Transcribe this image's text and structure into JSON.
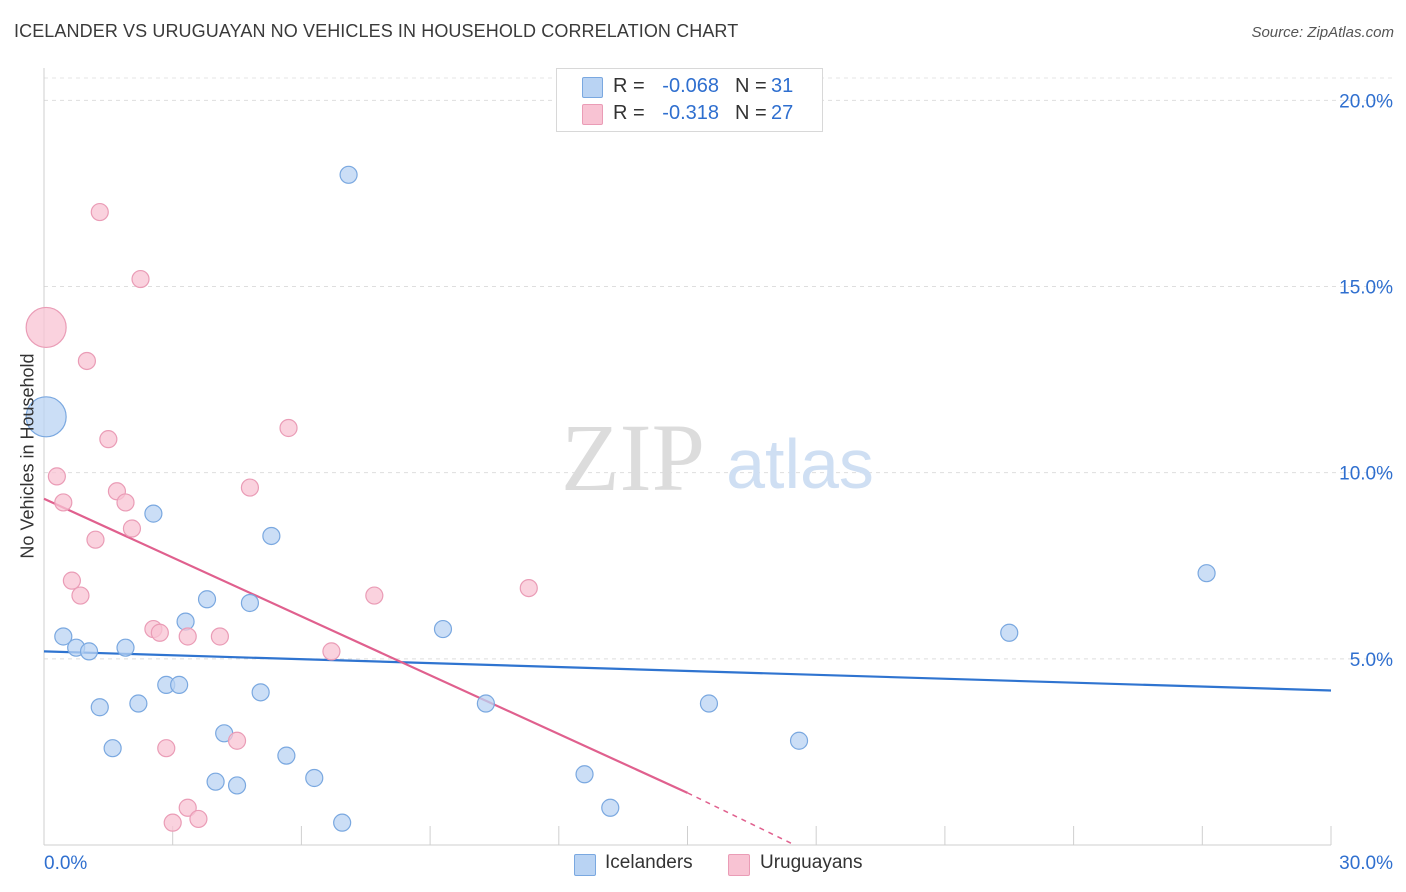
{
  "title": "ICELANDER VS URUGUAYAN NO VEHICLES IN HOUSEHOLD CORRELATION CHART",
  "source": "Source: ZipAtlas.com",
  "watermark": {
    "zip": "ZIP",
    "atlas": "atlas"
  },
  "colors": {
    "blue_fill": "#b9d3f3",
    "blue_stroke": "#7aa8e0",
    "blue_line": "#2f74d0",
    "pink_fill": "#f8c3d3",
    "pink_stroke": "#ea9cb6",
    "pink_line": "#e0608e",
    "accent_text": "#2f6fcf"
  },
  "legend": {
    "rows": [
      {
        "r_label": "R =",
        "r_value": "-0.068",
        "n_label": "N =",
        "n_value": "31"
      },
      {
        "r_label": "R =",
        "r_value": "-0.318",
        "n_label": "N =",
        "n_value": "27"
      }
    ]
  },
  "chart_data": {
    "type": "scatter",
    "xlabel": "",
    "ylabel": "No Vehicles in Household",
    "xlim": [
      0,
      30
    ],
    "ylim": [
      0,
      20.6
    ],
    "x_tick_labels": [
      "0.0%",
      "30.0%"
    ],
    "y_tick_labels": [
      "5.0%",
      "10.0%",
      "15.0%",
      "20.0%"
    ],
    "y_ticks": [
      5,
      10,
      15,
      20
    ],
    "legend_position": "bottom-center",
    "series": [
      {
        "name": "Icelanders",
        "color": "#7aa8e0",
        "points": [
          {
            "x": 0.05,
            "y": 11.5,
            "big": true
          },
          {
            "x": 0.45,
            "y": 5.6
          },
          {
            "x": 0.75,
            "y": 5.3
          },
          {
            "x": 1.05,
            "y": 5.2
          },
          {
            "x": 1.3,
            "y": 3.7
          },
          {
            "x": 1.6,
            "y": 2.6
          },
          {
            "x": 1.9,
            "y": 5.3
          },
          {
            "x": 2.2,
            "y": 3.8
          },
          {
            "x": 2.55,
            "y": 8.9
          },
          {
            "x": 2.85,
            "y": 4.3
          },
          {
            "x": 3.15,
            "y": 4.3
          },
          {
            "x": 3.3,
            "y": 6.0
          },
          {
            "x": 3.8,
            "y": 6.6
          },
          {
            "x": 4.0,
            "y": 1.7
          },
          {
            "x": 4.2,
            "y": 3.0
          },
          {
            "x": 4.5,
            "y": 1.6
          },
          {
            "x": 4.8,
            "y": 6.5
          },
          {
            "x": 5.05,
            "y": 4.1
          },
          {
            "x": 5.3,
            "y": 8.3
          },
          {
            "x": 5.65,
            "y": 2.4
          },
          {
            "x": 6.3,
            "y": 1.8
          },
          {
            "x": 6.95,
            "y": 0.6
          },
          {
            "x": 7.1,
            "y": 18.0
          },
          {
            "x": 9.3,
            "y": 5.8
          },
          {
            "x": 10.3,
            "y": 3.8
          },
          {
            "x": 12.6,
            "y": 1.9
          },
          {
            "x": 13.2,
            "y": 1.0
          },
          {
            "x": 15.5,
            "y": 3.8
          },
          {
            "x": 17.6,
            "y": 2.8
          },
          {
            "x": 22.5,
            "y": 5.7
          },
          {
            "x": 27.1,
            "y": 7.3
          }
        ]
      },
      {
        "name": "Uruguayans",
        "color": "#ea9cb6",
        "points": [
          {
            "x": 0.05,
            "y": 13.9,
            "big": true
          },
          {
            "x": 0.3,
            "y": 9.9
          },
          {
            "x": 0.45,
            "y": 9.2
          },
          {
            "x": 0.65,
            "y": 7.1
          },
          {
            "x": 0.85,
            "y": 6.7
          },
          {
            "x": 1.0,
            "y": 13.0
          },
          {
            "x": 1.2,
            "y": 8.2
          },
          {
            "x": 1.3,
            "y": 17.0
          },
          {
            "x": 1.5,
            "y": 10.9
          },
          {
            "x": 1.7,
            "y": 9.5
          },
          {
            "x": 1.9,
            "y": 9.2
          },
          {
            "x": 2.05,
            "y": 8.5
          },
          {
            "x": 2.25,
            "y": 15.2
          },
          {
            "x": 2.55,
            "y": 5.8
          },
          {
            "x": 2.7,
            "y": 5.7
          },
          {
            "x": 2.85,
            "y": 2.6
          },
          {
            "x": 3.0,
            "y": 0.6
          },
          {
            "x": 3.35,
            "y": 1.0
          },
          {
            "x": 3.35,
            "y": 5.6
          },
          {
            "x": 3.6,
            "y": 0.7
          },
          {
            "x": 4.1,
            "y": 5.6
          },
          {
            "x": 4.5,
            "y": 2.8
          },
          {
            "x": 4.8,
            "y": 9.6
          },
          {
            "x": 5.7,
            "y": 11.2
          },
          {
            "x": 6.7,
            "y": 5.2
          },
          {
            "x": 7.7,
            "y": 6.7
          },
          {
            "x": 11.3,
            "y": 6.9
          }
        ]
      }
    ],
    "trend_lines": [
      {
        "series": "Icelanders",
        "x0": 0,
        "y0": 5.2,
        "x1": 30,
        "y1": 4.15
      },
      {
        "series": "Uruguayans",
        "x0": 0,
        "y0": 9.3,
        "x1": 15,
        "y1": 1.4,
        "x_dash_to": 17.5,
        "y_dash_to": 0
      }
    ]
  }
}
